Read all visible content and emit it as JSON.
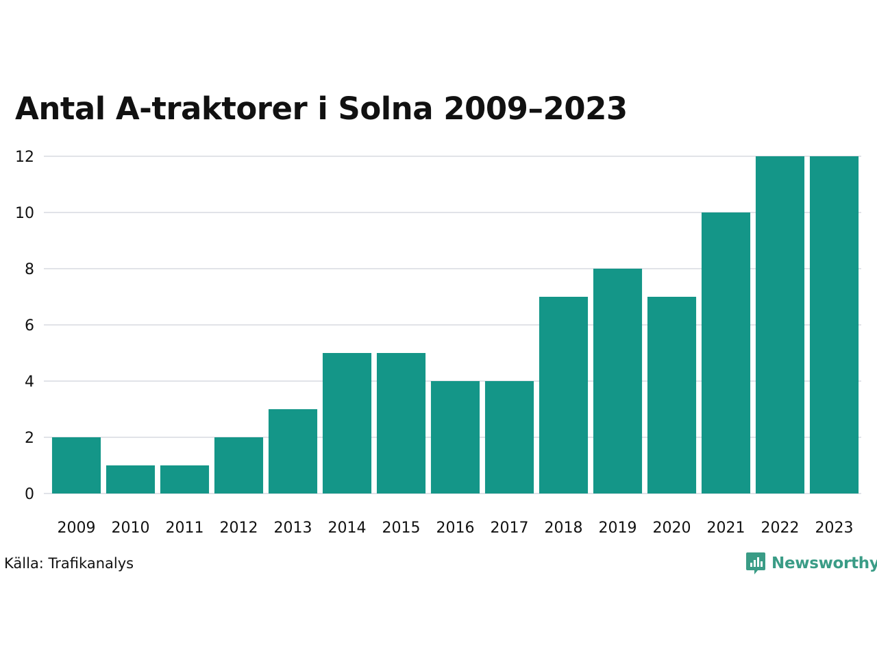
{
  "colors": {
    "bar": "#149688",
    "grid": "#e1e3e8",
    "text": "#111111",
    "brand": "#3a9c86"
  },
  "footer": {
    "source": "Källa: Trafikanalys",
    "brand_name": "Newsworthy",
    "brand_icon": "newsworthy-logo-icon"
  },
  "chart_data": {
    "type": "bar",
    "title": "Antal A-traktorer i Solna 2009–2023",
    "xlabel": "",
    "ylabel": "",
    "categories": [
      "2009",
      "2010",
      "2011",
      "2012",
      "2013",
      "2014",
      "2015",
      "2016",
      "2017",
      "2018",
      "2019",
      "2020",
      "2021",
      "2022",
      "2023"
    ],
    "values": [
      2,
      1,
      1,
      2,
      3,
      5,
      5,
      4,
      4,
      7,
      8,
      7,
      10,
      12,
      12
    ],
    "ylim": [
      0,
      12
    ],
    "yticks": [
      0,
      2,
      4,
      6,
      8,
      10,
      12
    ],
    "grid": true,
    "legend": "none"
  }
}
